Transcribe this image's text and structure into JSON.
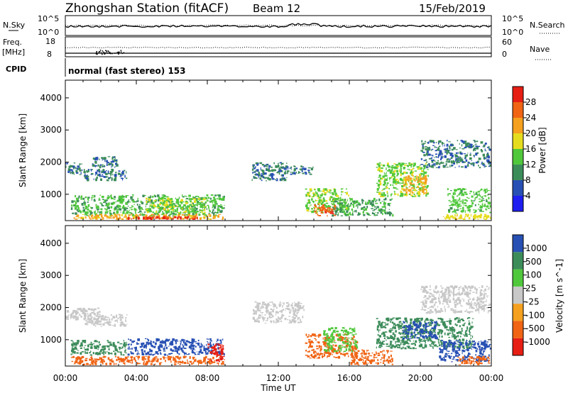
{
  "header": {
    "station": "Zhongshan Station (fitACF)",
    "beam": "Beam 12",
    "date": "15/Feb/2019"
  },
  "sky_panel": {
    "left_label": "N.Sky",
    "right_label": "N.Search",
    "left_ticks": [
      "10^5",
      "10^0"
    ],
    "right_ticks": [
      "10^5",
      "10^0"
    ]
  },
  "freq_panel": {
    "left_label_top": "Freq.",
    "left_label_bottom": "[MHz]",
    "left_ticks": [
      "18",
      "8"
    ],
    "right_label": "Nave",
    "right_ticks": [
      "60",
      "0"
    ]
  },
  "cpid": {
    "label": "CPID",
    "value": "normal (fast stereo) 153"
  },
  "time_axis": {
    "label": "Time UT",
    "ticks": [
      "00:00",
      "04:00",
      "08:00",
      "12:00",
      "16:00",
      "20:00",
      "00:00"
    ]
  },
  "colors": {
    "power": [
      "#1e1ef0",
      "#2850b4",
      "#3c8c5a",
      "#50c83c",
      "#e6dc1e",
      "#f5a01e",
      "#f06414",
      "#e61e14"
    ],
    "velocity": [
      "#e61e14",
      "#f06414",
      "#f5a01e",
      "#c8c8c8",
      "#50c83c",
      "#3c8c5a",
      "#2850b4"
    ]
  },
  "chart_data": [
    {
      "type": "heatmap",
      "name": "power",
      "ylabel": "Slant Range [km]",
      "xlabel": "",
      "x_range_hours": [
        0,
        24
      ],
      "ylim": [
        180,
        4550
      ],
      "y_ticks": [
        "1000",
        "2000",
        "3000",
        "4000"
      ],
      "y_tick_values": [
        1000,
        2000,
        3000,
        4000
      ],
      "colorbar_label": "Power [dB]",
      "colorbar_ticks": [
        "4",
        "8",
        "12",
        "16",
        "20",
        "24",
        "28"
      ],
      "colorbar_range": [
        0,
        30
      ],
      "regions": [
        {
          "t0": 0.0,
          "t1": 1.0,
          "r0": 1600,
          "r1": 2000,
          "v": 7
        },
        {
          "t0": 1.0,
          "t1": 3.5,
          "r0": 1400,
          "r1": 1800,
          "v": 8
        },
        {
          "t0": 1.5,
          "t1": 3.0,
          "r0": 1800,
          "r1": 2200,
          "v": 8
        },
        {
          "t0": 0.3,
          "t1": 9.0,
          "r0": 300,
          "r1": 1000,
          "v": 12
        },
        {
          "t0": 4.5,
          "t1": 8.0,
          "r0": 400,
          "r1": 900,
          "v": 15
        },
        {
          "t0": 0.3,
          "t1": 9.0,
          "r0": 200,
          "r1": 400,
          "v": 20
        },
        {
          "t0": 3.5,
          "t1": 7.5,
          "r0": 200,
          "r1": 320,
          "v": 27
        },
        {
          "t0": 10.5,
          "t1": 12.5,
          "r0": 1400,
          "r1": 2000,
          "v": 8
        },
        {
          "t0": 12.0,
          "t1": 14.0,
          "r0": 1600,
          "r1": 1900,
          "v": 8
        },
        {
          "t0": 13.5,
          "t1": 16.0,
          "r0": 400,
          "r1": 1200,
          "v": 14
        },
        {
          "t0": 14.0,
          "t1": 15.3,
          "r0": 300,
          "r1": 700,
          "v": 25
        },
        {
          "t0": 15.0,
          "t1": 18.5,
          "r0": 300,
          "r1": 900,
          "v": 11
        },
        {
          "t0": 17.5,
          "t1": 20.5,
          "r0": 900,
          "r1": 2000,
          "v": 14
        },
        {
          "t0": 19.0,
          "t1": 20.5,
          "r0": 1000,
          "r1": 1600,
          "v": 20
        },
        {
          "t0": 20.0,
          "t1": 24.0,
          "r0": 1800,
          "r1": 2700,
          "v": 8
        },
        {
          "t0": 21.5,
          "t1": 24.0,
          "r0": 400,
          "r1": 1200,
          "v": 13
        },
        {
          "t0": 21.0,
          "t1": 24.0,
          "r0": 200,
          "r1": 400,
          "v": 17
        }
      ]
    },
    {
      "type": "heatmap",
      "name": "velocity",
      "ylabel": "Slant Range [km]",
      "xlabel": "Time UT",
      "x_range_hours": [
        0,
        24
      ],
      "ylim": [
        180,
        4550
      ],
      "y_ticks": [
        "1000",
        "2000",
        "3000",
        "4000"
      ],
      "y_tick_values": [
        1000,
        2000,
        3000,
        4000
      ],
      "colorbar_label": "Velocity [m s^-1]",
      "colorbar_ticks": [
        "-1000",
        "-500",
        "-100",
        "-25",
        "25",
        "100",
        "500",
        "1000"
      ],
      "colorbar_range": [
        -1250,
        1250
      ],
      "regions": [
        {
          "t0": 0.0,
          "t1": 2.0,
          "r0": 1600,
          "r1": 2000,
          "v": 0
        },
        {
          "t0": 1.0,
          "t1": 3.5,
          "r0": 1400,
          "r1": 1800,
          "v": 0
        },
        {
          "t0": 0.3,
          "t1": 3.5,
          "r0": 500,
          "r1": 1000,
          "v": 300
        },
        {
          "t0": 3.5,
          "t1": 9.0,
          "r0": 500,
          "r1": 1050,
          "v": 700
        },
        {
          "t0": 0.3,
          "t1": 9.0,
          "r0": 200,
          "r1": 500,
          "v": -200
        },
        {
          "t0": 8.0,
          "t1": 9.0,
          "r0": 300,
          "r1": 900,
          "v": -600
        },
        {
          "t0": 10.5,
          "t1": 13.5,
          "r0": 1500,
          "r1": 2200,
          "v": 0
        },
        {
          "t0": 13.5,
          "t1": 16.5,
          "r0": 400,
          "r1": 1200,
          "v": -150
        },
        {
          "t0": 14.5,
          "t1": 16.5,
          "r0": 600,
          "r1": 1400,
          "v": 60
        },
        {
          "t0": 16.0,
          "t1": 18.5,
          "r0": 200,
          "r1": 700,
          "v": -300
        },
        {
          "t0": 17.5,
          "t1": 23.0,
          "r0": 700,
          "r1": 1700,
          "v": 300
        },
        {
          "t0": 19.0,
          "t1": 21.0,
          "r0": 1000,
          "r1": 1600,
          "v": 800
        },
        {
          "t0": 20.0,
          "t1": 24.0,
          "r0": 1800,
          "r1": 2700,
          "v": 0
        },
        {
          "t0": 21.0,
          "t1": 24.0,
          "r0": 300,
          "r1": 1000,
          "v": 600
        },
        {
          "t0": 22.0,
          "t1": 24.0,
          "r0": 200,
          "r1": 500,
          "v": -200
        }
      ]
    }
  ]
}
